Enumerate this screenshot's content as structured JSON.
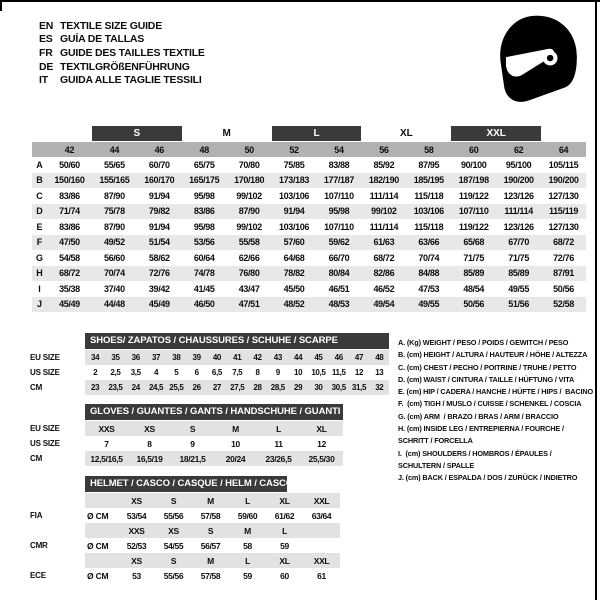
{
  "header": {
    "languages": [
      {
        "code": "EN",
        "title": "TEXTILE SIZE GUIDE"
      },
      {
        "code": "ES",
        "title": "GUÍA DE TALLAS"
      },
      {
        "code": "FR",
        "title": "GUIDE DES TAILLES TEXTILE"
      },
      {
        "code": "DE",
        "title": "TEXTILGRÖßENFÜHRUNG"
      },
      {
        "code": "IT",
        "title": "GUIDA ALLE TAGLIE TESSILI"
      }
    ]
  },
  "icons": {
    "helmet": "racing-helmet-icon"
  },
  "colors": {
    "dark_bar": "#3a3a3a",
    "number_band": "#b1b1b1",
    "stripe_main": "#e8e8e8",
    "stripe_sub": "#e2e2e2"
  },
  "size_table": {
    "groups": [
      {
        "label": "S",
        "dark": true
      },
      {
        "label": "M",
        "dark": false
      },
      {
        "label": "L",
        "dark": true
      },
      {
        "label": "XL",
        "dark": false
      },
      {
        "label": "XXL",
        "dark": true
      }
    ],
    "columns": [
      "42",
      "44",
      "46",
      "48",
      "50",
      "52",
      "54",
      "56",
      "58",
      "60",
      "62",
      "64"
    ],
    "rows": [
      {
        "letter": "A",
        "values": [
          "50/60",
          "55/65",
          "60/70",
          "65/75",
          "70/80",
          "75/85",
          "83/88",
          "85/92",
          "87/95",
          "90/100",
          "95/100",
          "105/115"
        ]
      },
      {
        "letter": "B",
        "values": [
          "150/160",
          "155/165",
          "160/170",
          "165/175",
          "170/180",
          "173/183",
          "177/187",
          "182/190",
          "185/195",
          "187/198",
          "190/200",
          "190/200"
        ]
      },
      {
        "letter": "C",
        "values": [
          "83/86",
          "87/90",
          "91/94",
          "95/98",
          "99/102",
          "103/106",
          "107/110",
          "111/114",
          "115/118",
          "119/122",
          "123/126",
          "127/130"
        ]
      },
      {
        "letter": "D",
        "values": [
          "71/74",
          "75/78",
          "79/82",
          "83/86",
          "87/90",
          "91/94",
          "95/98",
          "99/102",
          "103/106",
          "107/110",
          "111/114",
          "115/119"
        ]
      },
      {
        "letter": "E",
        "values": [
          "83/86",
          "87/90",
          "91/94",
          "95/98",
          "99/102",
          "103/106",
          "107/110",
          "111/114",
          "115/118",
          "119/122",
          "123/126",
          "127/130"
        ]
      },
      {
        "letter": "F",
        "values": [
          "47/50",
          "49/52",
          "51/54",
          "53/56",
          "55/58",
          "57/60",
          "59/62",
          "61/63",
          "63/66",
          "65/68",
          "67/70",
          "68/72"
        ]
      },
      {
        "letter": "G",
        "values": [
          "54/58",
          "56/60",
          "58/62",
          "60/64",
          "62/66",
          "64/68",
          "66/70",
          "68/72",
          "70/74",
          "71/75",
          "71/75",
          "72/76"
        ]
      },
      {
        "letter": "H",
        "values": [
          "68/72",
          "70/74",
          "72/76",
          "74/78",
          "76/80",
          "78/82",
          "80/84",
          "82/86",
          "84/88",
          "85/89",
          "85/89",
          "87/91"
        ]
      },
      {
        "letter": "I",
        "values": [
          "35/38",
          "37/40",
          "39/42",
          "41/45",
          "43/47",
          "45/50",
          "46/51",
          "46/52",
          "47/53",
          "48/54",
          "49/55",
          "50/56"
        ]
      },
      {
        "letter": "J",
        "values": [
          "45/49",
          "44/48",
          "45/49",
          "46/50",
          "47/51",
          "48/52",
          "48/53",
          "49/54",
          "49/55",
          "50/56",
          "51/56",
          "52/58"
        ]
      }
    ]
  },
  "shoes": {
    "title": "SHOES/ ZAPATOS / CHAUSSURES / SCHUHE / SCARPE",
    "rows": [
      {
        "label": "EU SIZE",
        "striped": true,
        "values": [
          "34",
          "35",
          "36",
          "37",
          "38",
          "39",
          "40",
          "41",
          "42",
          "43",
          "44",
          "45",
          "46",
          "47",
          "48"
        ]
      },
      {
        "label": "US SIZE",
        "striped": false,
        "values": [
          "2",
          "2,5",
          "3,5",
          "4",
          "5",
          "6",
          "6,5",
          "7,5",
          "8",
          "9",
          "10",
          "10,5",
          "11,5",
          "12",
          "13"
        ]
      },
      {
        "label": "CM",
        "striped": true,
        "values": [
          "23",
          "23,5",
          "24",
          "24,5",
          "25,5",
          "26",
          "27",
          "27,5",
          "28",
          "28,5",
          "29",
          "30",
          "30,5",
          "31,5",
          "32"
        ]
      }
    ]
  },
  "gloves": {
    "title": "GLOVES / GUANTES / GANTS / HANDSCHUHE / GUANTI",
    "rows": [
      {
        "label": "EU SIZE",
        "striped": true,
        "values": [
          "XXS",
          "XS",
          "S",
          "M",
          "L",
          "XL"
        ]
      },
      {
        "label": "US SIZE",
        "striped": false,
        "values": [
          "7",
          "8",
          "9",
          "10",
          "11",
          "12"
        ]
      },
      {
        "label": "CM",
        "striped": true,
        "values": [
          "12,5/16,5",
          "16,5/19",
          "18/21,5",
          "20/24",
          "23/26,5",
          "25,5/30"
        ]
      }
    ]
  },
  "helmet": {
    "title": "HELMET / CASCO / CASQUE / HELM / CASCO",
    "sections": [
      {
        "label": "FIA",
        "unit": "Ø CM",
        "sizes": [
          "XS",
          "S",
          "M",
          "L",
          "XL",
          "XXL"
        ],
        "values": [
          "53/54",
          "55/56",
          "57/58",
          "59/60",
          "61/62",
          "63/64"
        ]
      },
      {
        "label": "CMR",
        "unit": "Ø CM",
        "sizes": [
          "XXS",
          "XS",
          "S",
          "M",
          "L",
          ""
        ],
        "values": [
          "52/53",
          "54/55",
          "56/57",
          "58",
          "59",
          ""
        ]
      },
      {
        "label": "ECE",
        "unit": "Ø CM",
        "sizes": [
          "XS",
          "S",
          "M",
          "L",
          "XL",
          "XXL"
        ],
        "values": [
          "53",
          "55/56",
          "57/58",
          "59",
          "60",
          "61"
        ]
      }
    ]
  },
  "legend": {
    "items": [
      "A. (Kg) WEIGHT / PESO / POIDS / GEWITCH / PESO",
      "B. (cm) HEIGHT / ALTURA / HAUTEUR / HÖHE / ALTEZZA",
      "C. (cm) CHEST / PECHO / POITRINE / TRUHE / PETTO",
      "D. (cm) WAIST / CINTURA / TAILLE / HÜFTUNG / VITA",
      "E. (cm) HIP / CADERA / HANCHE / HÜFTE / HIPS /  BACINO",
      "F.  (cm) TIGH / MUSLO / CUISSE / SCHENKEL / COSCIA",
      "G. (cm) ARM  / BRAZO / BRAS / ARM / BRACCIO",
      "H. (cm) INSIDE LEG / ENTREPIERNA / FOURCHE /\nSCHRITT / FORCELLA",
      "I.  (cm) SHOULDERS / HOMBROS / ÉPAULES /\nSCHULTERN / SPALLE",
      "J. (cm) BACK / ESPALDA / DOS / ZURÜCK / INDIETRO"
    ]
  }
}
